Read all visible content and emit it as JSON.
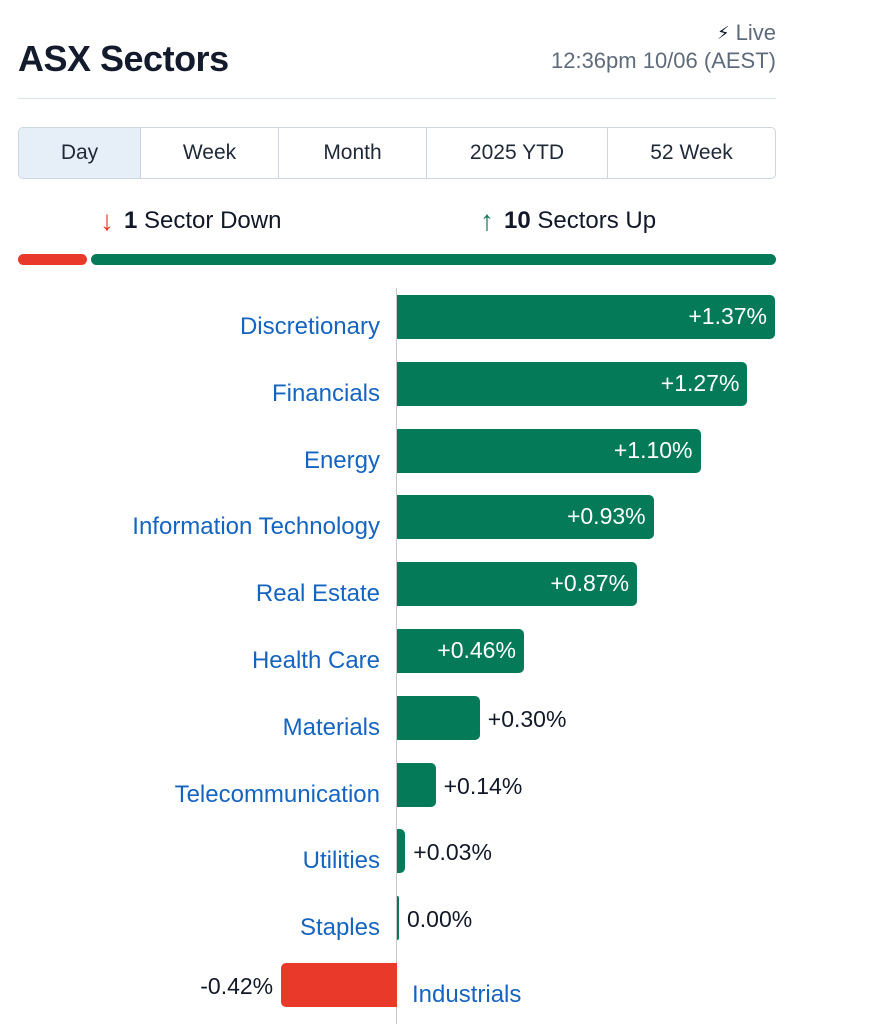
{
  "header": {
    "title": "ASX Sectors",
    "live_label": "Live",
    "timestamp": "12:36pm 10/06 (AEST)"
  },
  "tabs": [
    {
      "label": "Day",
      "active": true
    },
    {
      "label": "Week",
      "active": false
    },
    {
      "label": "Month",
      "active": false
    },
    {
      "label": "2025 YTD",
      "active": false
    },
    {
      "label": "52 Week",
      "active": false
    }
  ],
  "summary": {
    "down_count": "1",
    "down_label": "Sector Down",
    "up_count": "10",
    "up_label": "Sectors Up"
  },
  "colors": {
    "up": "#057a58",
    "down": "#e8392a",
    "label": "#1565c0"
  },
  "icons": {
    "live": "lightning-bolt-icon",
    "down": "arrow-down-icon",
    "up": "arrow-up-icon"
  },
  "chart_data": {
    "type": "bar",
    "orientation": "horizontal",
    "unit": "%",
    "categories": [
      "Discretionary",
      "Financials",
      "Energy",
      "Information Technology",
      "Real Estate",
      "Health Care",
      "Materials",
      "Telecommunication",
      "Utilities",
      "Staples",
      "Industrials"
    ],
    "values": [
      1.37,
      1.27,
      1.1,
      0.93,
      0.87,
      0.46,
      0.3,
      0.14,
      0.03,
      0.0,
      -0.42
    ],
    "value_labels": [
      "+1.37%",
      "+1.27%",
      "+1.10%",
      "+0.93%",
      "+0.87%",
      "+0.46%",
      "+0.30%",
      "+0.14%",
      "+0.03%",
      "0.00%",
      "-0.42%"
    ],
    "xlim": [
      -1.37,
      1.37
    ]
  }
}
